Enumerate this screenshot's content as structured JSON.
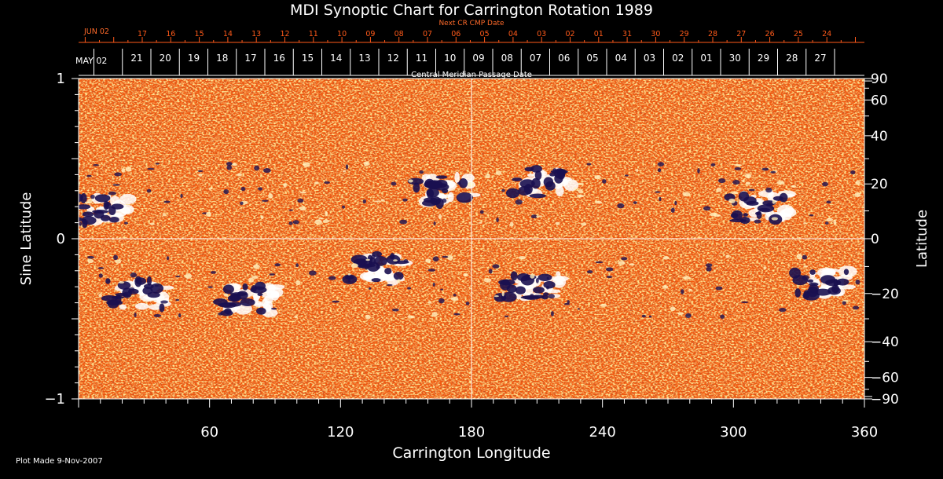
{
  "chart_data": {
    "type": "heatmap",
    "title": "MDI Synoptic Chart for Carrington Rotation 1989",
    "xlabel": "Carrington Longitude",
    "ylabel_left": "Sine Latitude",
    "ylabel_right": "Latitude",
    "xlim": [
      0,
      360
    ],
    "ylim_sine": [
      -1,
      1
    ],
    "x_ticks": [
      60,
      120,
      180,
      240,
      300,
      360
    ],
    "y_ticks_left": [
      {
        "value": 1,
        "label": "1"
      },
      {
        "value": 0,
        "label": "0"
      },
      {
        "value": -1,
        "label": "−1"
      }
    ],
    "y_ticks_right": [
      "90",
      "60",
      "40",
      "20",
      "0",
      "−20",
      "−40",
      "−60",
      "−90"
    ],
    "y_ticks_right_values": [
      90,
      60,
      40,
      20,
      0,
      -20,
      -40,
      -60,
      -90
    ],
    "top_axis_red": {
      "label": "Next CR CMP Date",
      "start_label": "JUN 02",
      "days": [
        "17",
        "16",
        "15",
        "14",
        "13",
        "12",
        "11",
        "10",
        "09",
        "08",
        "07",
        "06",
        "05",
        "04",
        "03",
        "02",
        "01",
        "31",
        "30",
        "29",
        "28",
        "27",
        "26",
        "25",
        "24"
      ]
    },
    "top_axis_white": {
      "label": "Central Meridian Passage Date",
      "start_label": "MAY 02",
      "days": [
        "21",
        "20",
        "19",
        "18",
        "17",
        "16",
        "15",
        "14",
        "13",
        "12",
        "11",
        "10",
        "09",
        "08",
        "07",
        "06",
        "05",
        "04",
        "03",
        "02",
        "01",
        "30",
        "29",
        "28",
        "27"
      ]
    },
    "grid_lines": {
      "longitude": 180,
      "sine_latitude": 0
    },
    "colors": {
      "background": "#000000",
      "field_base": "#f25a10",
      "positive_polarity": "#ffffff",
      "negative_polarity": "#1a1050",
      "top_axis_dates": "#ff5a1a"
    },
    "active_regions": [
      {
        "lon": 12,
        "sinlat": 0.18,
        "polarity": "mixed"
      },
      {
        "lon": 30,
        "sinlat": -0.35,
        "polarity": "mixed"
      },
      {
        "lon": 80,
        "sinlat": -0.38,
        "polarity": "mixed"
      },
      {
        "lon": 140,
        "sinlat": -0.18,
        "polarity": "mixed"
      },
      {
        "lon": 170,
        "sinlat": 0.3,
        "polarity": "mixed"
      },
      {
        "lon": 215,
        "sinlat": 0.35,
        "polarity": "mixed"
      },
      {
        "lon": 210,
        "sinlat": -0.3,
        "polarity": "mixed"
      },
      {
        "lon": 315,
        "sinlat": 0.2,
        "polarity": "mixed"
      },
      {
        "lon": 345,
        "sinlat": -0.28,
        "polarity": "mixed"
      }
    ]
  },
  "footer": {
    "plot_made": "Plot Made  9-Nov-2007"
  }
}
